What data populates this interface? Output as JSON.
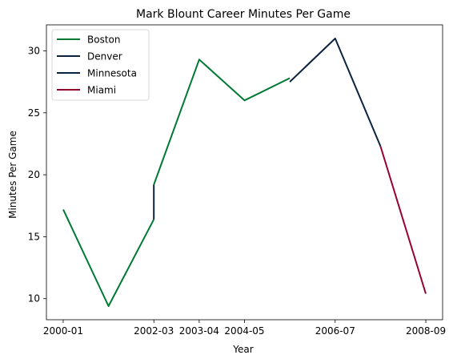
{
  "chart_data": {
    "type": "line",
    "title": "Mark Blount Career Minutes Per Game",
    "xlabel": "Year",
    "ylabel": "Minutes Per Game",
    "x_ticks": [
      "2000-01",
      "2002-03",
      "2003-04",
      "2004-05",
      "2006-07",
      "2008-09"
    ],
    "y_ticks": [
      10,
      15,
      20,
      25,
      30
    ],
    "xlim": [
      -0.37,
      8.37
    ],
    "ylim": [
      8.3,
      32.1
    ],
    "grid": false,
    "legend_position": "top-left",
    "series": [
      {
        "name": "Boston",
        "color": "#007a33",
        "points": [
          [
            0,
            17.2
          ],
          [
            1,
            9.4
          ],
          [
            2,
            16.4
          ]
        ]
      },
      {
        "name": "Denver",
        "color": "#0e2240",
        "points": [
          [
            2,
            16.4
          ],
          [
            2,
            19.2
          ]
        ]
      },
      {
        "name": "Boston",
        "color": "#007a33",
        "points": [
          [
            2,
            19.2
          ],
          [
            3,
            29.3
          ],
          [
            4,
            26.0
          ],
          [
            5,
            27.8
          ]
        ]
      },
      {
        "name": "Minnesota",
        "color": "#0c2340",
        "points": [
          [
            5,
            27.5
          ],
          [
            6,
            31.0
          ],
          [
            7,
            22.3
          ]
        ]
      },
      {
        "name": "Miami",
        "color": "#98002e",
        "points": [
          [
            7,
            22.3
          ],
          [
            8,
            10.4
          ]
        ]
      }
    ],
    "legend": [
      {
        "name": "Boston",
        "color": "#007a33"
      },
      {
        "name": "Denver",
        "color": "#0e2240"
      },
      {
        "name": "Minnesota",
        "color": "#0c2340"
      },
      {
        "name": "Miami",
        "color": "#98002e"
      }
    ]
  }
}
